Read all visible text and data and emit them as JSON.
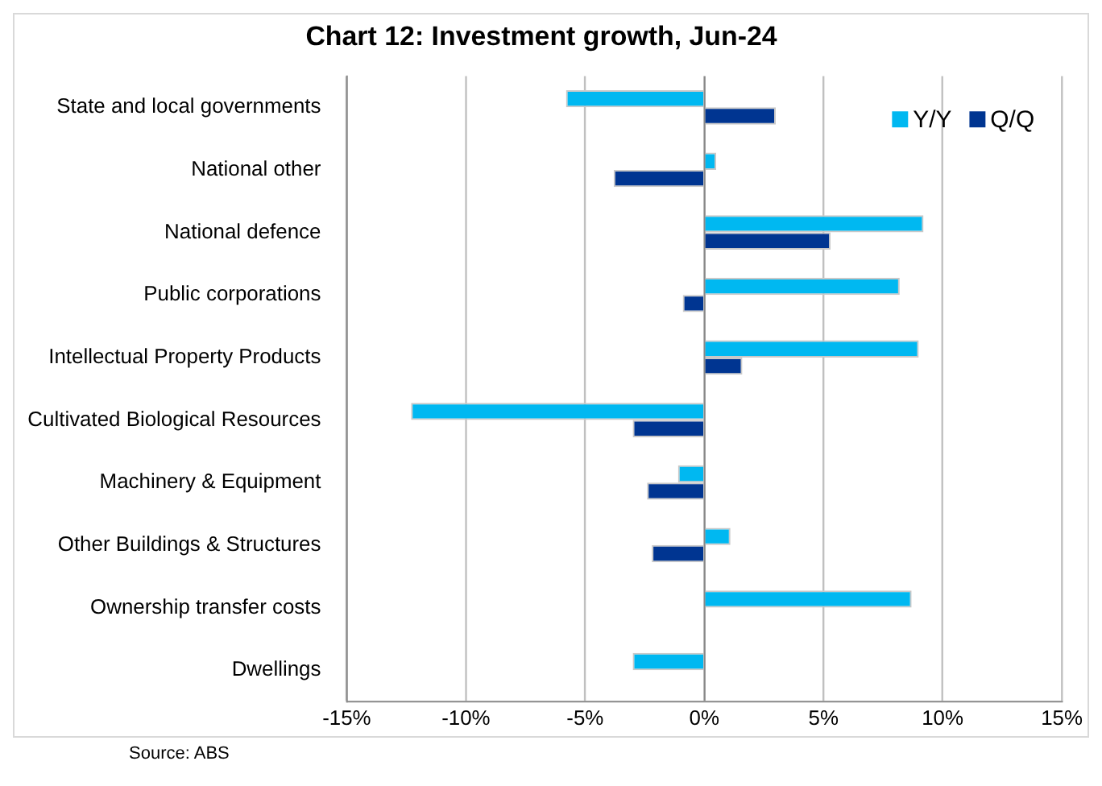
{
  "chart_data": {
    "type": "bar",
    "orientation": "horizontal",
    "title": "Chart 12: Investment growth, Jun-24",
    "categories": [
      "State and local governments",
      "National other",
      "National defence",
      "Public corporations",
      "Intellectual Property Products",
      "Cultivated Biological Resources",
      "Machinery & Equipment",
      "Other Buildings & Structures",
      "Ownership transfer costs",
      "Dwellings"
    ],
    "series": [
      {
        "name": "Y/Y",
        "color": "#00b8f1",
        "values": [
          -5.8,
          0.5,
          9.2,
          8.2,
          9.0,
          -12.3,
          -1.1,
          1.1,
          8.7,
          -3.0
        ]
      },
      {
        "name": "Q/Q",
        "color": "#003591",
        "values": [
          3.0,
          -3.8,
          5.3,
          -0.9,
          1.6,
          -3.0,
          -2.4,
          -2.2,
          0,
          0
        ]
      }
    ],
    "xlim": [
      -15,
      15
    ],
    "xticks": [
      {
        "value": -15,
        "label": "-15%"
      },
      {
        "value": -10,
        "label": "-10%"
      },
      {
        "value": -5,
        "label": "-5%"
      },
      {
        "value": 0,
        "label": "0%"
      },
      {
        "value": 5,
        "label": "5%"
      },
      {
        "value": 10,
        "label": "10%"
      },
      {
        "value": 15,
        "label": "15%"
      }
    ],
    "grid": "x",
    "legend": "top right",
    "annotations": [
      "Source: ABS"
    ]
  }
}
